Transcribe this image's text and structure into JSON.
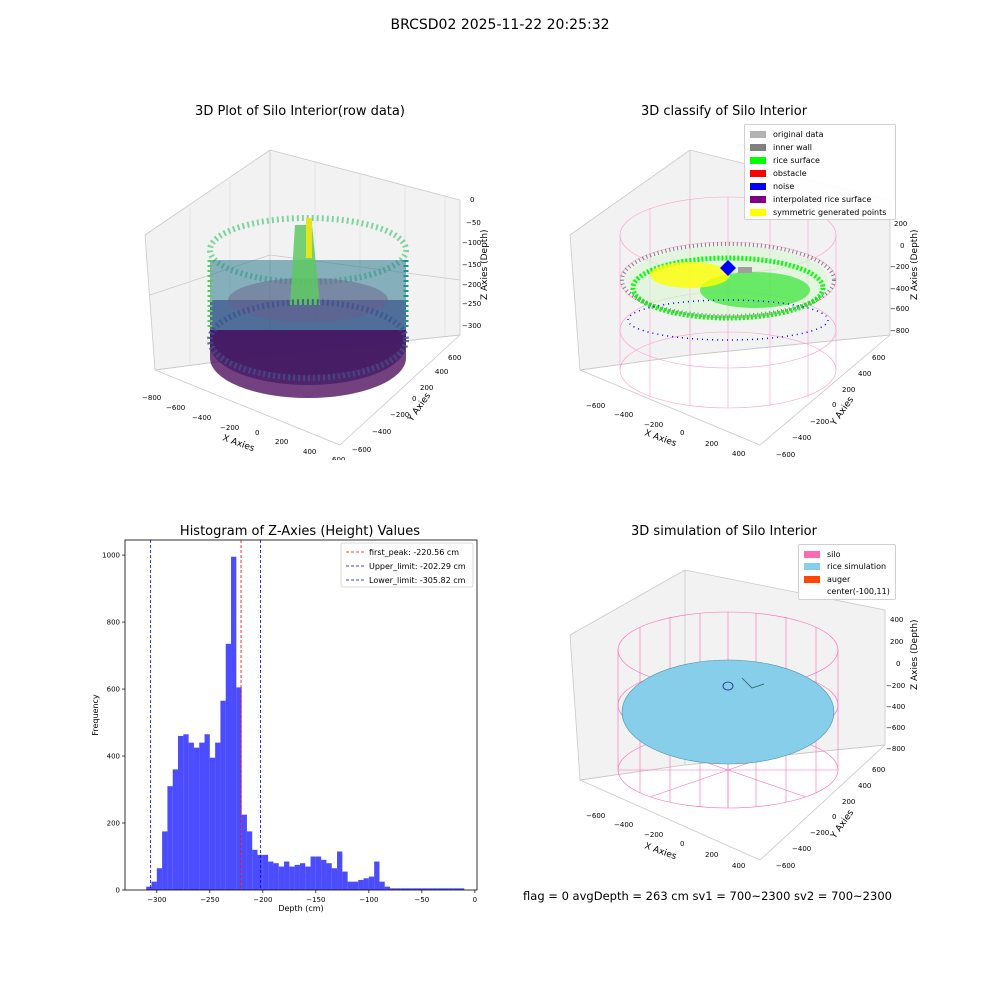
{
  "figure": {
    "suptitle": "BRCSD02 2025-11-22 20:25:32",
    "status_line": "flag = 0     avgDepth = 263 cm  sv1 = 700~2300  sv2 = 700~2300"
  },
  "panels": {
    "raw": {
      "title": "3D Plot of Silo Interior(row data)",
      "xlabel": "X Axies",
      "ylabel": "Y Axies",
      "zlabel": "Z Axies (Depth)",
      "xticks": [
        "−800",
        "−600",
        "−400",
        "−200",
        "0",
        "200",
        "400",
        "600"
      ],
      "yticks": [
        "−600",
        "−400",
        "−200",
        "0",
        "200",
        "400",
        "600"
      ],
      "zticks": [
        "0",
        "−50",
        "−100",
        "−150",
        "−200",
        "−250",
        "−300"
      ],
      "colormap": "viridis"
    },
    "classify": {
      "title": "3D classify of Silo Interior",
      "xlabel": "X Axies",
      "ylabel": "Y Axies",
      "zlabel": "Z Axies (Depth)",
      "xticks": [
        "−600",
        "−400",
        "−200",
        "0",
        "200",
        "400"
      ],
      "yticks": [
        "−600",
        "−400",
        "−200",
        "0",
        "200",
        "400",
        "600"
      ],
      "zticks": [
        "200",
        "0",
        "−200",
        "−400",
        "−600",
        "−800"
      ],
      "legend": [
        {
          "label": "original data",
          "color": "#b3b3b3"
        },
        {
          "label": "inner wall",
          "color": "#808080"
        },
        {
          "label": "rice surface",
          "color": "#00ff00"
        },
        {
          "label": "obstacle",
          "color": "#ff0000"
        },
        {
          "label": "noise",
          "color": "#0000ff"
        },
        {
          "label": "interpolated rice surface",
          "color": "#800080"
        },
        {
          "label": "symmetric generated points",
          "color": "#ffff00"
        }
      ]
    },
    "simulation": {
      "title": "3D simulation of Silo Interior",
      "xlabel": "X Axies",
      "ylabel": "Y Axies",
      "zlabel": "Z Axies (Depth)",
      "xticks": [
        "−600",
        "−400",
        "−200",
        "0",
        "200",
        "400"
      ],
      "yticks": [
        "−600",
        "−400",
        "−200",
        "0",
        "200",
        "400",
        "600"
      ],
      "zticks": [
        "400",
        "200",
        "0",
        "−200",
        "−400",
        "−600",
        "−800"
      ],
      "legend": [
        {
          "label": "silo",
          "color": "#ff69b4"
        },
        {
          "label": "rice simulation",
          "color": "#87ceeb"
        },
        {
          "label": "auger",
          "color": "#ff4500"
        },
        {
          "label": "center(-100,11)",
          "color": ""
        }
      ]
    }
  },
  "chart_data": [
    {
      "type": "bar",
      "title": "Histogram of Z-Axies (Height) Values",
      "xlabel": "Depth (cm)",
      "ylabel": "Frequency",
      "xlim": [
        -330,
        2
      ],
      "ylim": [
        0,
        1045
      ],
      "xticks": [
        -300,
        -250,
        -200,
        -150,
        -100,
        -50,
        0
      ],
      "yticks": [
        0,
        200,
        400,
        600,
        800,
        1000
      ],
      "bar_color": "#0000ff",
      "bin_edges": [
        -310,
        -305,
        -300,
        -295,
        -290,
        -285,
        -280,
        -275,
        -270,
        -265,
        -260,
        -255,
        -250,
        -245,
        -240,
        -235,
        -230,
        -225,
        -220,
        -215,
        -210,
        -205,
        -200,
        -195,
        -190,
        -185,
        -180,
        -175,
        -170,
        -165,
        -160,
        -155,
        -150,
        -145,
        -140,
        -135,
        -130,
        -125,
        -120,
        -115,
        -110,
        -105,
        -100,
        -95,
        -90,
        -85,
        -80,
        -75,
        -70,
        -65,
        -60,
        -55,
        -50,
        -45,
        -40,
        -35,
        -30,
        -25,
        -20,
        -15,
        -10
      ],
      "values": [
        10,
        25,
        65,
        175,
        310,
        360,
        460,
        465,
        440,
        425,
        440,
        465,
        395,
        440,
        565,
        735,
        995,
        605,
        225,
        175,
        120,
        105,
        105,
        85,
        80,
        70,
        85,
        70,
        75,
        80,
        70,
        100,
        100,
        90,
        80,
        65,
        115,
        55,
        25,
        25,
        30,
        35,
        40,
        85,
        25,
        10,
        5,
        5,
        5,
        5,
        5,
        5,
        5,
        5,
        5,
        5,
        5,
        5,
        5,
        5
      ],
      "series_note_hidden": "",
      "reference_lines": [
        {
          "label": "first_peak: -220.56 cm",
          "x": -220.56,
          "color": "#ff0000"
        },
        {
          "label": "Upper_limit: -202.29 cm",
          "x": -202.29,
          "color": "#0000ff"
        },
        {
          "label": "Lower_limit: -305.82 cm",
          "x": -305.82,
          "color": "#0000ff"
        }
      ],
      "grid": false,
      "legend_position": "top-right"
    }
  ]
}
